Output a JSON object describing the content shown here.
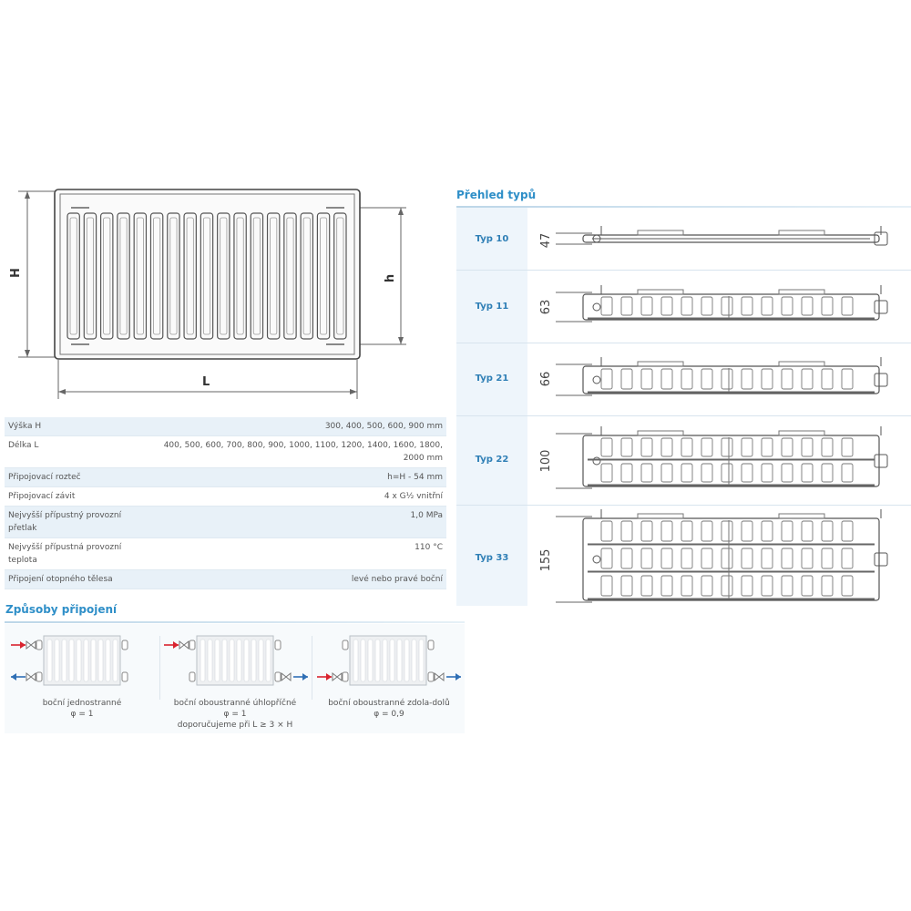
{
  "drawing": {
    "height_label": "H",
    "inner_height_label": "h",
    "length_label": "L"
  },
  "specs": [
    {
      "name": "Výška H",
      "value": "300, 400, 500, 600, 900 mm"
    },
    {
      "name": "Délka L",
      "value": "400, 500, 600, 700, 800, 900, 1000, 1100, 1200, 1400, 1600, 1800, 2000 mm"
    },
    {
      "name": "Připojovací rozteč",
      "value": "h=H - 54 mm"
    },
    {
      "name": "Připojovací závit",
      "value": "4 x G½ vnitřní"
    },
    {
      "name": "Nejvyšší přípustný provozní přetlak",
      "value": "1,0 MPa"
    },
    {
      "name": "Nejvyšší přípustná provozní teplota",
      "value": "110 °C"
    },
    {
      "name": "Připojení otopného tělesa",
      "value": "levé nebo pravé boční"
    }
  ],
  "connections": {
    "title": "Způsoby připojení",
    "items": [
      {
        "line1": "boční jednostranné",
        "line2": "φ = 1",
        "line3": ""
      },
      {
        "line1": "boční oboustranné úhlopříčné",
        "line2": "φ = 1",
        "line3": "doporučujeme při L ≥ 3 × H"
      },
      {
        "line1": "boční oboustranné zdola-dolů",
        "line2": "φ = 0,9",
        "line3": ""
      }
    ],
    "arrow_colors": {
      "supply": "#d9232e",
      "return": "#2f6fb5"
    }
  },
  "types": {
    "title": "Přehled typů",
    "items": [
      {
        "label": "Typ 10",
        "depth": "47"
      },
      {
        "label": "Typ 11",
        "depth": "63"
      },
      {
        "label": "Typ 21",
        "depth": "66"
      },
      {
        "label": "Typ 22",
        "depth": "100"
      },
      {
        "label": "Typ 33",
        "depth": "155"
      }
    ]
  },
  "colors": {
    "accent": "#2f8fc8",
    "table_shade": "#e8f1f8"
  }
}
